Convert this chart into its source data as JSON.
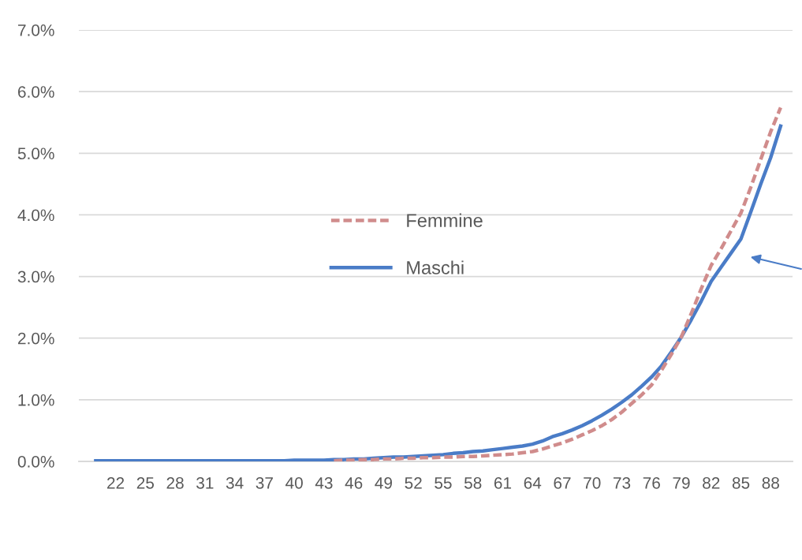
{
  "chart_data": {
    "type": "line",
    "x": [
      20,
      21,
      22,
      23,
      24,
      25,
      26,
      27,
      28,
      29,
      30,
      31,
      32,
      33,
      34,
      35,
      36,
      37,
      38,
      39,
      40,
      41,
      42,
      43,
      44,
      45,
      46,
      47,
      48,
      49,
      50,
      51,
      52,
      53,
      54,
      55,
      56,
      57,
      58,
      59,
      60,
      61,
      62,
      63,
      64,
      65,
      66,
      67,
      68,
      69,
      70,
      71,
      72,
      73,
      74,
      75,
      76,
      77,
      78,
      79,
      80,
      81,
      82,
      83,
      84,
      85,
      86,
      87,
      88,
      89
    ],
    "series": [
      {
        "name": "Femmine",
        "color": "#d08c8c",
        "line_style": "dashed",
        "values": [
          null,
          null,
          null,
          null,
          null,
          null,
          null,
          null,
          null,
          null,
          null,
          null,
          null,
          null,
          null,
          null,
          null,
          null,
          null,
          null,
          null,
          null,
          null,
          null,
          0.01,
          0.02,
          0.02,
          0.03,
          0.03,
          0.04,
          0.04,
          0.05,
          0.05,
          0.06,
          0.06,
          0.07,
          0.07,
          0.08,
          0.08,
          0.09,
          0.1,
          0.11,
          0.12,
          0.14,
          0.16,
          0.2,
          0.25,
          0.3,
          0.36,
          0.43,
          0.5,
          0.58,
          0.68,
          0.8,
          0.94,
          1.08,
          1.24,
          1.48,
          1.74,
          2.02,
          2.4,
          2.8,
          3.18,
          3.45,
          3.74,
          4.03,
          4.45,
          4.9,
          5.35,
          5.74
        ]
      },
      {
        "name": "Maschi",
        "color": "#4a7cc7",
        "line_style": "solid",
        "values": [
          0.01,
          0.01,
          0.01,
          0.01,
          0.01,
          0.01,
          0.01,
          0.01,
          0.01,
          0.01,
          0.01,
          0.01,
          0.01,
          0.01,
          0.01,
          0.01,
          0.01,
          0.01,
          0.01,
          0.01,
          0.02,
          0.02,
          0.02,
          0.02,
          0.03,
          0.03,
          0.04,
          0.04,
          0.05,
          0.06,
          0.07,
          0.07,
          0.08,
          0.09,
          0.1,
          0.11,
          0.13,
          0.14,
          0.16,
          0.17,
          0.19,
          0.21,
          0.23,
          0.25,
          0.28,
          0.33,
          0.4,
          0.45,
          0.51,
          0.58,
          0.66,
          0.75,
          0.85,
          0.96,
          1.08,
          1.22,
          1.37,
          1.55,
          1.78,
          2.02,
          2.3,
          2.6,
          2.92,
          3.15,
          3.38,
          3.61,
          4.05,
          4.5,
          4.93,
          5.44
        ]
      }
    ],
    "xlim": [
      18.3,
      90.2
    ],
    "xticks": [
      22,
      25,
      28,
      31,
      34,
      37,
      40,
      43,
      46,
      49,
      52,
      55,
      58,
      61,
      64,
      67,
      70,
      73,
      76,
      79,
      82,
      85,
      88
    ],
    "ylim": [
      0,
      7
    ],
    "yticks": [
      {
        "value": 0,
        "label": "0.0%"
      },
      {
        "value": 1,
        "label": "1.0%"
      },
      {
        "value": 2,
        "label": "2.0%"
      },
      {
        "value": 3,
        "label": "3.0%"
      },
      {
        "value": 4,
        "label": "4.0%"
      },
      {
        "value": 5,
        "label": "5.0%"
      },
      {
        "value": 6,
        "label": "6.0%"
      },
      {
        "value": 7,
        "label": "7.0%"
      }
    ],
    "grid": "y",
    "legend": "center left",
    "marker": "none"
  }
}
